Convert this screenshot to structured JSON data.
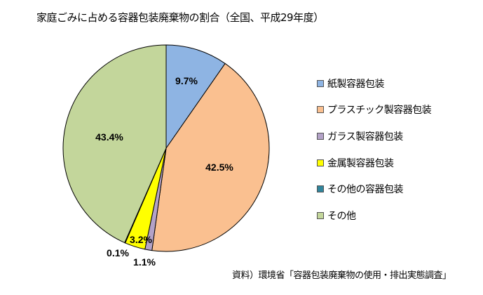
{
  "chart_data": {
    "type": "pie",
    "title": "家庭ごみに占める容器包装廃棄物の割合（全国、平成29年度）",
    "source": "資料）環境省「容器包装廃棄物の使用・排出実態調査」",
    "legend_position": "right",
    "start": "12 o'clock, clockwise",
    "slices": [
      {
        "name": "紙製容器包装",
        "value": 9.7,
        "label": "9.7%",
        "color": "#8eb4e3"
      },
      {
        "name": "プラスチック製容器包装",
        "value": 42.5,
        "label": "42.5%",
        "color": "#fac090"
      },
      {
        "name": "ガラス製容器包装",
        "value": 1.1,
        "label": "1.1%",
        "color": "#b3a2c7"
      },
      {
        "name": "金属製容器包装",
        "value": 3.2,
        "label": "3.2%",
        "color": "#ffff00"
      },
      {
        "name": "その他の容器包装",
        "value": 0.1,
        "label": "0.1%",
        "color": "#31859c"
      },
      {
        "name": "その他",
        "value": 43.4,
        "label": "43.4%",
        "color": "#c3d69b"
      }
    ]
  }
}
